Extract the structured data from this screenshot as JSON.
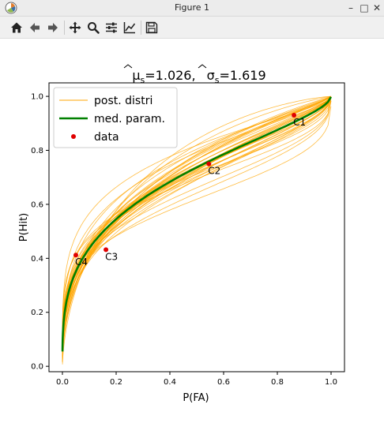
{
  "window": {
    "title": "Figure 1",
    "app_icon": "matplotlib-icon"
  },
  "window_controls": {
    "minimize": "–",
    "maximize": "□",
    "close": "✕"
  },
  "toolbar": [
    {
      "name": "home-icon"
    },
    {
      "name": "back-arrow-icon"
    },
    {
      "name": "forward-arrow-icon"
    },
    {
      "name": "pan-icon"
    },
    {
      "name": "zoom-icon"
    },
    {
      "name": "configure-subplots-icon"
    },
    {
      "name": "edit-axis-icon"
    },
    {
      "name": "save-icon"
    }
  ],
  "chart_data": {
    "type": "line",
    "title": "μ̂s=1.026,   σ̂s=1.619",
    "title_mu": "μ",
    "title_mu_sub": "s",
    "title_mu_val": "=1.026,",
    "title_sigma": "σ",
    "title_sigma_sub": "s",
    "title_sigma_val": "=1.619",
    "xlabel": "P(FA)",
    "ylabel": "P(Hit)",
    "xlim": [
      -0.05,
      1.05
    ],
    "ylim": [
      -0.02,
      1.05
    ],
    "xticks": [
      0.0,
      0.2,
      0.4,
      0.6,
      0.8,
      1.0
    ],
    "xtick_labels": [
      "0.0",
      "0.2",
      "0.4",
      "0.6",
      "0.8",
      "1.0"
    ],
    "yticks": [
      0.0,
      0.2,
      0.4,
      0.6,
      0.8,
      1.0
    ],
    "ytick_labels": [
      "0.0",
      "0.2",
      "0.4",
      "0.6",
      "0.8",
      "1.0"
    ],
    "grid": false,
    "legend": {
      "placement": "top-left",
      "entries": [
        {
          "label": "post. distri",
          "color": "#ffa500",
          "style": "thin-line"
        },
        {
          "label": "med. param.",
          "color": "#008000",
          "style": "thick-line"
        },
        {
          "label": "data",
          "color": "#e00000",
          "style": "marker"
        }
      ]
    },
    "median_curve": {
      "mu": 1.026,
      "sigma": 1.619,
      "color": "#008000"
    },
    "posterior_curve_count": 40,
    "posterior_color": "#ffa500",
    "points": [
      {
        "label": "C1",
        "x": 0.862,
        "y": 0.93
      },
      {
        "label": "C2",
        "x": 0.545,
        "y": 0.75
      },
      {
        "label": "C3",
        "x": 0.162,
        "y": 0.432
      },
      {
        "label": "C4",
        "x": 0.05,
        "y": 0.412
      }
    ],
    "point_color": "#e00000"
  }
}
